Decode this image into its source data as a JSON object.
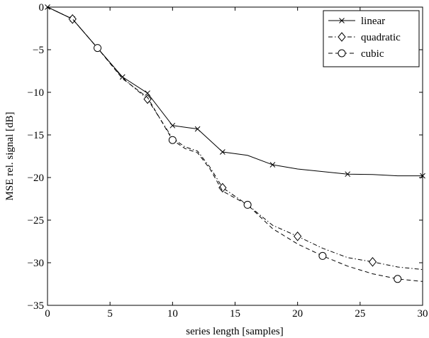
{
  "chart_data": {
    "type": "line",
    "title": "",
    "xlabel": "series length [samples]",
    "ylabel": "MSE rel. signal [dB]",
    "xlim": [
      0,
      30
    ],
    "ylim": [
      -35,
      0
    ],
    "xticks": [
      0,
      5,
      10,
      15,
      20,
      25,
      30
    ],
    "yticks": [
      0,
      -5,
      -10,
      -15,
      -20,
      -25,
      -30,
      -35
    ],
    "grid": false,
    "legend": "top-right",
    "series": [
      {
        "name": "linear",
        "line_style": "solid",
        "marker": "x",
        "x": [
          0,
          2,
          4,
          6,
          8,
          10,
          12,
          14,
          16,
          18,
          20,
          22,
          24,
          26,
          28,
          30
        ],
        "y": [
          0,
          -1.4,
          -4.8,
          -8.2,
          -10.1,
          -13.9,
          -14.3,
          -17.0,
          -17.4,
          -18.5,
          -19.0,
          -19.3,
          -19.6,
          -19.65,
          -19.8,
          -19.8
        ],
        "marker_x": [
          0,
          2,
          4,
          6,
          8,
          10,
          12,
          14,
          18,
          24,
          30
        ]
      },
      {
        "name": "quadratic",
        "line_style": "dashdot",
        "marker": "diamond",
        "x": [
          0,
          2,
          4,
          6,
          8,
          10,
          11,
          12,
          13,
          14,
          16,
          18,
          20,
          22,
          24,
          26,
          28,
          30
        ],
        "y": [
          0,
          -1.4,
          -4.8,
          -8.3,
          -10.8,
          -15.4,
          -16.4,
          -16.9,
          -18.8,
          -21.2,
          -23.2,
          -25.6,
          -26.9,
          -28.3,
          -29.4,
          -29.9,
          -30.5,
          -30.8
        ],
        "marker_x": [
          2,
          8,
          14,
          20,
          26
        ]
      },
      {
        "name": "cubic",
        "line_style": "dashed",
        "marker": "circle",
        "x": [
          0,
          2,
          4,
          6,
          8,
          10,
          11,
          12,
          13,
          14,
          16,
          18,
          20,
          22,
          24,
          26,
          28,
          30
        ],
        "y": [
          0,
          -1.4,
          -4.8,
          -8.4,
          -10.6,
          -15.6,
          -16.6,
          -17.1,
          -19.0,
          -21.6,
          -23.2,
          -26.0,
          -27.8,
          -29.2,
          -30.4,
          -31.3,
          -31.9,
          -32.2
        ],
        "marker_x": [
          4,
          10,
          16,
          22,
          28
        ]
      }
    ]
  }
}
